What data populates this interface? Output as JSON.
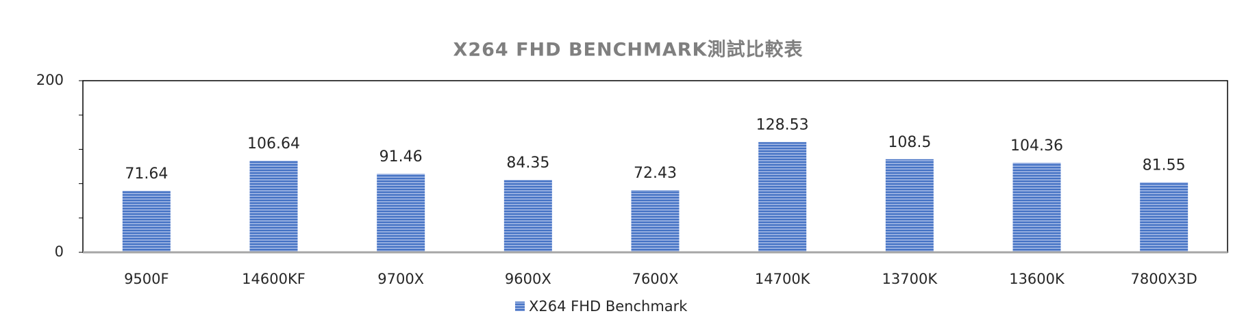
{
  "chart_data": {
    "type": "bar",
    "title": "X264 FHD BENCHMARK測試比較表",
    "categories": [
      "9500F",
      "14600KF",
      "9700X",
      "9600X",
      "7600X",
      "14700K",
      "13700K",
      "13600K",
      "7800X3D"
    ],
    "series": [
      {
        "name": "X264 FHD Benchmark",
        "color": "#4472c4",
        "values": [
          71.64,
          106.64,
          91.46,
          84.35,
          72.43,
          128.53,
          108.5,
          104.36,
          81.55
        ]
      }
    ],
    "ylim": [
      0,
      200
    ],
    "yticks": [
      0,
      200
    ],
    "yminor_ticks": [
      40,
      80,
      120,
      160
    ],
    "legend": "bottom"
  }
}
